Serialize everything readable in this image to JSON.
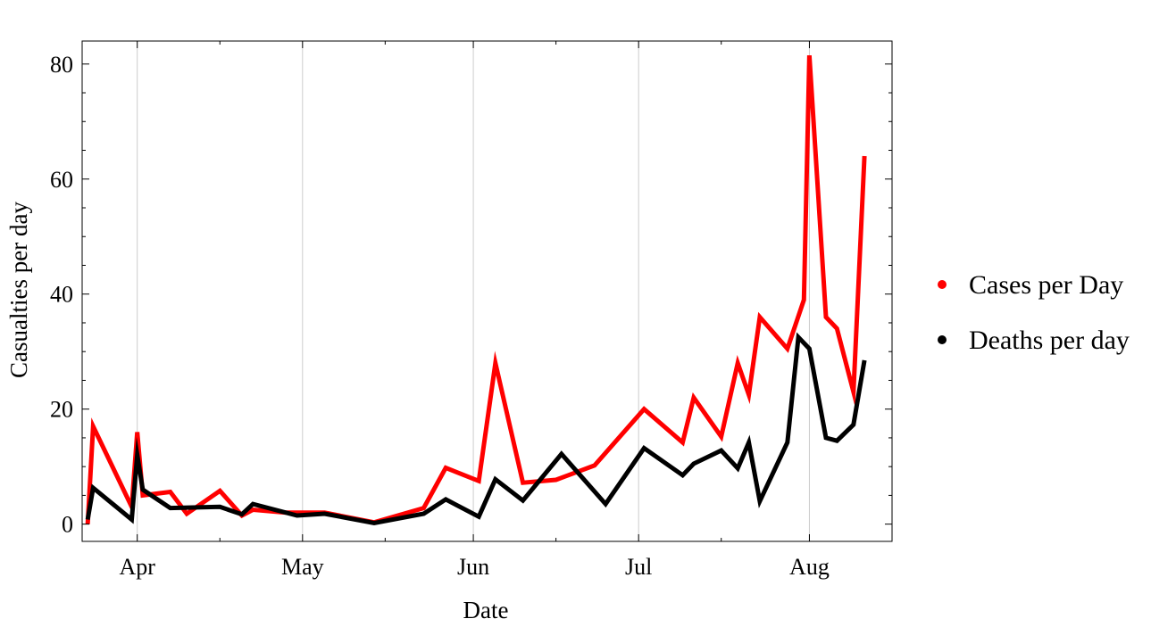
{
  "chart_data": {
    "type": "line",
    "title": "",
    "xlabel": "Date",
    "ylabel": "Casualties per day",
    "x_axis_type": "date",
    "xlim": [
      "2020-03-22",
      "2020-08-16"
    ],
    "ylim": [
      -3,
      84
    ],
    "grid": "vertical at month ticks",
    "legend_position": "right",
    "x_ticks": [
      {
        "date": "2020-04-01",
        "label": "Apr"
      },
      {
        "date": "2020-05-01",
        "label": "May"
      },
      {
        "date": "2020-06-01",
        "label": "Jun"
      },
      {
        "date": "2020-07-01",
        "label": "Jul"
      },
      {
        "date": "2020-08-01",
        "label": "Aug"
      }
    ],
    "y_ticks": [
      0,
      20,
      40,
      60,
      80
    ],
    "series": [
      {
        "name": "Cases per Day",
        "color": "#ff0000",
        "points": [
          [
            "2020-03-23",
            0
          ],
          [
            "2020-03-24",
            17
          ],
          [
            "2020-03-31",
            3
          ],
          [
            "2020-04-01",
            16
          ],
          [
            "2020-04-02",
            5
          ],
          [
            "2020-04-07",
            5.6
          ],
          [
            "2020-04-10",
            1.8
          ],
          [
            "2020-04-16",
            5.8
          ],
          [
            "2020-04-20",
            1.5
          ],
          [
            "2020-04-22",
            2.5
          ],
          [
            "2020-04-28",
            2
          ],
          [
            "2020-05-05",
            2
          ],
          [
            "2020-05-14",
            0.3
          ],
          [
            "2020-05-23",
            2.8
          ],
          [
            "2020-05-27",
            9.8
          ],
          [
            "2020-06-02",
            7.5
          ],
          [
            "2020-06-05",
            28
          ],
          [
            "2020-06-10",
            7.2
          ],
          [
            "2020-06-16",
            7.7
          ],
          [
            "2020-06-23",
            10.2
          ],
          [
            "2020-07-02",
            20
          ],
          [
            "2020-07-09",
            14.2
          ],
          [
            "2020-07-11",
            22
          ],
          [
            "2020-07-16",
            15.2
          ],
          [
            "2020-07-19",
            28
          ],
          [
            "2020-07-21",
            22.5
          ],
          [
            "2020-07-23",
            36
          ],
          [
            "2020-07-28",
            30.5
          ],
          [
            "2020-07-31",
            39
          ],
          [
            "2020-08-01",
            81.5
          ],
          [
            "2020-08-04",
            36
          ],
          [
            "2020-08-06",
            34
          ],
          [
            "2020-08-09",
            23
          ],
          [
            "2020-08-11",
            64
          ]
        ]
      },
      {
        "name": "Deaths per day",
        "color": "#000000",
        "points": [
          [
            "2020-03-23",
            0.8
          ],
          [
            "2020-03-24",
            6.3
          ],
          [
            "2020-03-31",
            0.8
          ],
          [
            "2020-04-01",
            12
          ],
          [
            "2020-04-02",
            6
          ],
          [
            "2020-04-07",
            2.8
          ],
          [
            "2020-04-16",
            3
          ],
          [
            "2020-04-20",
            1.7
          ],
          [
            "2020-04-22",
            3.5
          ],
          [
            "2020-04-30",
            1.5
          ],
          [
            "2020-05-05",
            1.8
          ],
          [
            "2020-05-14",
            0.2
          ],
          [
            "2020-05-23",
            1.8
          ],
          [
            "2020-05-27",
            4.3
          ],
          [
            "2020-06-02",
            1.3
          ],
          [
            "2020-06-05",
            7.8
          ],
          [
            "2020-06-10",
            4.1
          ],
          [
            "2020-06-17",
            12.2
          ],
          [
            "2020-06-25",
            3.5
          ],
          [
            "2020-07-02",
            13.2
          ],
          [
            "2020-07-09",
            8.5
          ],
          [
            "2020-07-11",
            10.5
          ],
          [
            "2020-07-16",
            12.8
          ],
          [
            "2020-07-19",
            9.7
          ],
          [
            "2020-07-21",
            14.2
          ],
          [
            "2020-07-23",
            4
          ],
          [
            "2020-07-28",
            14.2
          ],
          [
            "2020-07-30",
            32.5
          ],
          [
            "2020-08-01",
            30.5
          ],
          [
            "2020-08-04",
            15
          ],
          [
            "2020-08-06",
            14.5
          ],
          [
            "2020-08-09",
            17.3
          ],
          [
            "2020-08-11",
            28.5
          ]
        ]
      }
    ]
  }
}
